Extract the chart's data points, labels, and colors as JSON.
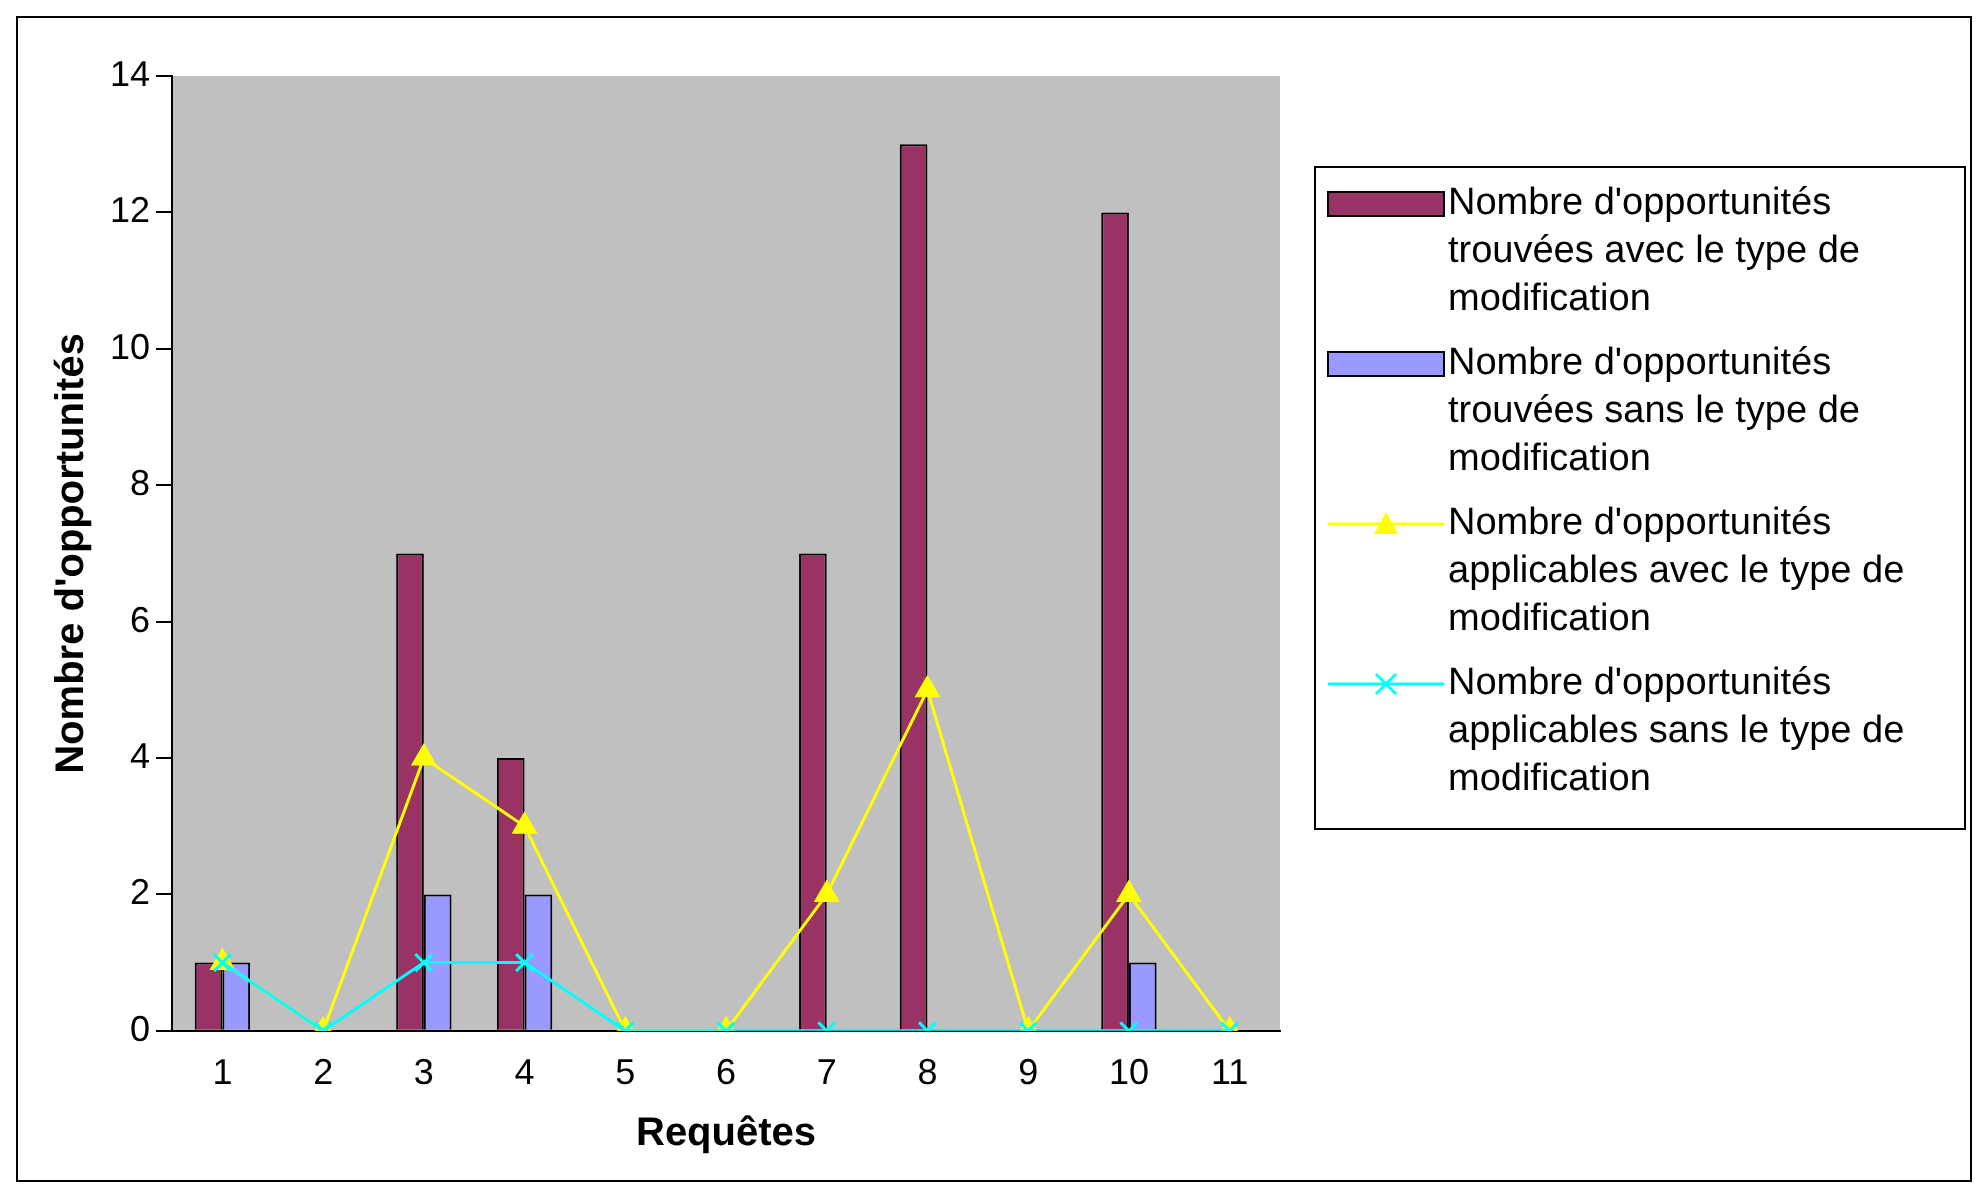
{
  "chart_data": {
    "type": "bar",
    "xlabel": "Requêtes",
    "ylabel": "Nombre d'opportunités",
    "categories": [
      "1",
      "2",
      "3",
      "4",
      "5",
      "6",
      "7",
      "8",
      "9",
      "10",
      "11"
    ],
    "series": [
      {
        "name": "Nombre d'opportunités trouvées avec le type de modification",
        "color": "#993366",
        "values": [
          1,
          0,
          7,
          4,
          0,
          0,
          7,
          13,
          0,
          12,
          0
        ]
      },
      {
        "name": "Nombre d'opportunités trouvées sans le type de modification",
        "color": "#9999ff",
        "values": [
          1,
          0,
          2,
          2,
          0,
          0,
          0,
          0,
          0,
          1,
          0
        ]
      },
      {
        "name": "Nombre d'opportunités applicables avec le type de modification",
        "type": "line",
        "color": "#ffff00",
        "marker": "triangle",
        "values": [
          1,
          0,
          4,
          3,
          0,
          0,
          2,
          5,
          0,
          2,
          0
        ]
      },
      {
        "name": "Nombre d'opportunités applicables sans le type de modification",
        "type": "line",
        "color": "#00ffff",
        "marker": "cross",
        "values": [
          1,
          0,
          1,
          1,
          0,
          0,
          0,
          0,
          0,
          0,
          0
        ]
      }
    ],
    "ylim": [
      0,
      14
    ],
    "yticks": [
      0,
      2,
      4,
      6,
      8,
      10,
      12,
      14
    ],
    "grid": false,
    "legend": "right"
  }
}
